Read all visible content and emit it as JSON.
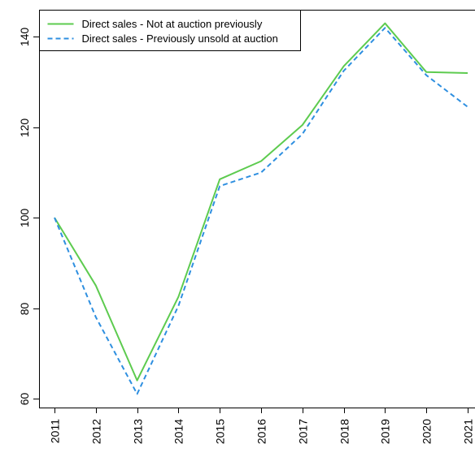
{
  "chart_data": {
    "type": "line",
    "x": [
      "2011",
      "2012",
      "2013",
      "2014",
      "2015",
      "2016",
      "2017",
      "2018",
      "2019",
      "2020",
      "2021"
    ],
    "series": [
      {
        "name": "Direct sales - Not at auction previously",
        "values": [
          100,
          85,
          64,
          82.5,
          108.5,
          112.5,
          120.5,
          133.5,
          143,
          132.2,
          132
        ],
        "color": "#5DCB4F",
        "line_style": "solid"
      },
      {
        "name": "Direct sales - Previously unsold at auction",
        "values": [
          100,
          78,
          61,
          80.5,
          107,
          110,
          118.5,
          132.5,
          142,
          131.5,
          124.5
        ],
        "color": "#2E8FE0",
        "line_style": "dashed"
      }
    ],
    "y_ticks": [
      60,
      80,
      100,
      120,
      140
    ],
    "ylim": [
      58,
      146
    ],
    "grid": false,
    "legend_position": "top-left"
  }
}
